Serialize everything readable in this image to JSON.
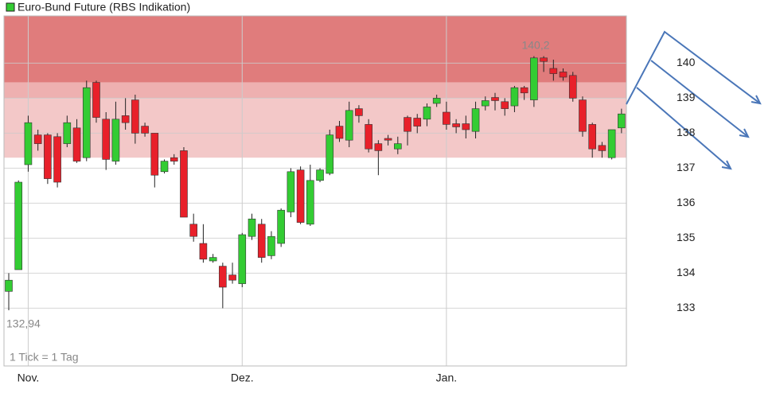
{
  "chart_data": {
    "type": "candlestick",
    "title": "Euro-Bund Future (RBS Indikation)",
    "note": "1 Tick = 1 Tag",
    "annotations": [
      {
        "text": "140,2"
      },
      {
        "text": "132,94"
      }
    ],
    "x_labels": [
      {
        "index": 2,
        "label": "Nov."
      },
      {
        "index": 24,
        "label": "Dez."
      },
      {
        "index": 45,
        "label": "Jan."
      }
    ],
    "ylim": [
      131.35,
      141.35
    ],
    "yticks": [
      133,
      134,
      135,
      136,
      137,
      138,
      139,
      140
    ],
    "grid": true,
    "up_color": "#33cc33",
    "down_color": "#e8202a",
    "zones": [
      {
        "from": 139.45,
        "to": 141.35,
        "color": "#e07c7c"
      },
      {
        "from": 139.0,
        "to": 139.45,
        "color": "#eeb0b0"
      },
      {
        "from": 137.3,
        "to": 139.0,
        "color": "#f3c8c8"
      }
    ],
    "open": [
      133.48,
      134.1,
      137.1,
      137.95,
      137.95,
      137.9,
      137.7,
      138.15,
      137.3,
      139.45,
      138.4,
      137.2,
      138.5,
      138.95,
      138.2,
      138.0,
      136.9,
      137.3,
      137.5,
      135.4,
      134.85,
      134.35,
      134.2,
      133.95,
      133.7,
      135.05,
      135.4,
      134.5,
      134.85,
      135.75,
      136.95,
      135.4,
      136.65,
      136.85,
      138.2,
      137.8,
      138.7,
      138.25,
      137.7,
      137.85,
      137.55,
      138.45,
      138.43,
      138.4,
      138.85,
      138.6,
      138.27,
      138.27,
      138.05,
      138.78,
      139.02,
      138.9,
      138.78,
      139.3,
      138.95,
      140.15,
      139.85,
      139.75,
      139.65,
      138.95,
      138.25,
      137.65,
      137.3,
      138.15
    ],
    "high": [
      134.0,
      136.65,
      138.5,
      138.1,
      138.0,
      138.0,
      138.5,
      138.4,
      139.5,
      139.5,
      138.6,
      138.9,
      139.0,
      139.1,
      138.3,
      138.0,
      137.25,
      137.4,
      137.6,
      135.7,
      135.4,
      134.55,
      134.3,
      134.3,
      135.15,
      135.7,
      135.55,
      135.2,
      135.85,
      137.0,
      137.05,
      137.1,
      137.0,
      138.1,
      138.35,
      138.9,
      138.8,
      138.4,
      137.8,
      137.95,
      137.9,
      138.5,
      138.55,
      138.85,
      139.1,
      138.9,
      138.4,
      138.5,
      138.9,
      139.05,
      139.15,
      139.0,
      139.35,
      139.35,
      140.2,
      140.2,
      140.1,
      139.85,
      139.75,
      139.05,
      138.3,
      137.75,
      138.1,
      138.7
    ],
    "low": [
      132.94,
      134.1,
      136.9,
      137.5,
      136.55,
      136.45,
      137.6,
      137.15,
      137.2,
      138.3,
      136.95,
      137.1,
      138.1,
      137.7,
      137.9,
      136.45,
      136.85,
      137.1,
      135.6,
      134.9,
      134.3,
      134.3,
      133.0,
      133.7,
      133.6,
      134.95,
      134.3,
      134.4,
      134.75,
      135.6,
      135.4,
      135.35,
      136.6,
      136.8,
      137.75,
      137.6,
      138.3,
      137.45,
      136.8,
      137.65,
      137.4,
      137.65,
      138.0,
      138.2,
      138.75,
      138.1,
      138.0,
      137.85,
      137.85,
      138.65,
      138.65,
      138.5,
      138.6,
      138.95,
      138.75,
      139.75,
      139.5,
      139.5,
      138.9,
      137.9,
      137.3,
      137.3,
      137.25,
      138.0
    ],
    "close": [
      133.8,
      136.6,
      138.3,
      137.7,
      136.7,
      136.6,
      138.3,
      137.2,
      139.3,
      138.45,
      137.25,
      138.4,
      138.3,
      138.0,
      138.0,
      136.8,
      137.2,
      137.2,
      135.6,
      135.05,
      134.4,
      134.45,
      133.6,
      133.8,
      135.1,
      135.55,
      134.45,
      135.05,
      135.8,
      136.9,
      135.45,
      136.65,
      136.95,
      137.95,
      137.85,
      138.65,
      138.5,
      137.55,
      137.5,
      137.8,
      137.7,
      138.05,
      138.2,
      138.75,
      139.0,
      138.25,
      138.18,
      138.1,
      138.7,
      138.93,
      138.93,
      138.7,
      139.3,
      139.15,
      140.15,
      140.05,
      139.7,
      139.6,
      139.0,
      138.05,
      137.55,
      137.5,
      138.1,
      138.55
    ]
  }
}
